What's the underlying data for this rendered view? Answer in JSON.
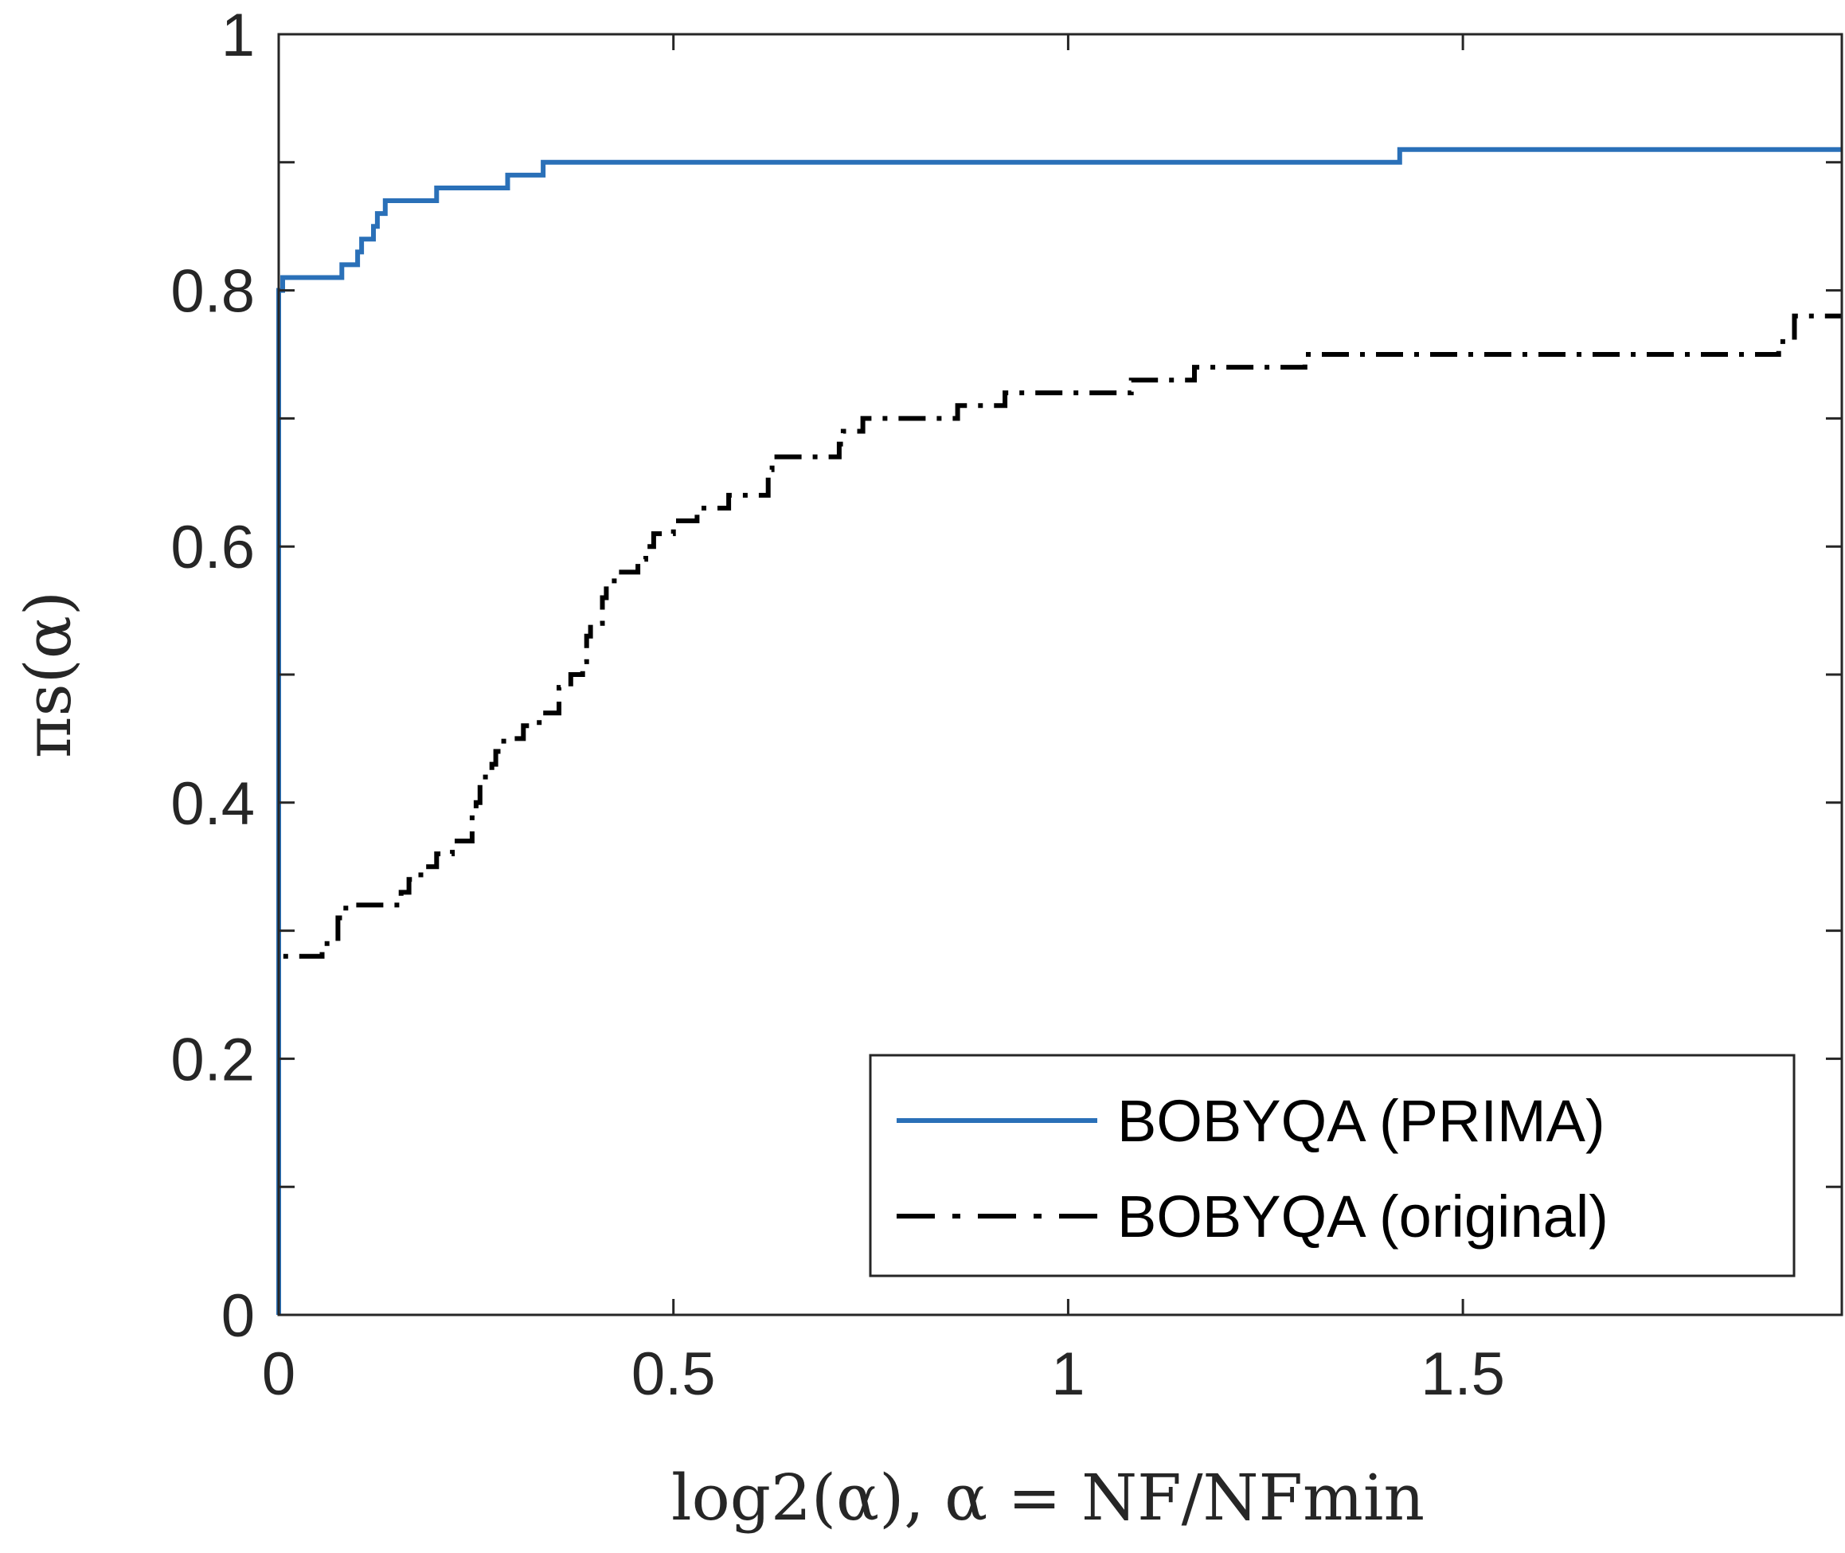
{
  "chart_data": {
    "type": "line",
    "title": "",
    "xlabel": "log2(α),    α = NF/NFmin",
    "ylabel": "πs(α)",
    "xlim": [
      0,
      1.98
    ],
    "ylim": [
      0,
      1
    ],
    "grid": false,
    "legend_position": "bottom-right",
    "x_ticks": [
      {
        "value": 0,
        "label": "0"
      },
      {
        "value": 0.5,
        "label": "0.5"
      },
      {
        "value": 1,
        "label": "1"
      },
      {
        "value": 1.5,
        "label": "1.5"
      }
    ],
    "y_ticks": [
      {
        "value": 0,
        "label": "0"
      },
      {
        "value": 0.2,
        "label": "0.2"
      },
      {
        "value": 0.4,
        "label": "0.4"
      },
      {
        "value": 0.6,
        "label": "0.6"
      },
      {
        "value": 0.8,
        "label": "0.8"
      },
      {
        "value": 1,
        "label": "1"
      }
    ],
    "minor_y_ticks": [
      0.1,
      0.3,
      0.5,
      0.7,
      0.9
    ],
    "series": [
      {
        "name": "BOBYQA (PRIMA)",
        "color": "#2a70b8",
        "style": "solid",
        "points": [
          [
            0,
            0
          ],
          [
            0,
            0.8
          ],
          [
            0.005,
            0.8
          ],
          [
            0.005,
            0.81
          ],
          [
            0.08,
            0.81
          ],
          [
            0.08,
            0.82
          ],
          [
            0.1,
            0.82
          ],
          [
            0.1,
            0.83
          ],
          [
            0.105,
            0.83
          ],
          [
            0.105,
            0.84
          ],
          [
            0.12,
            0.84
          ],
          [
            0.12,
            0.85
          ],
          [
            0.125,
            0.85
          ],
          [
            0.125,
            0.86
          ],
          [
            0.135,
            0.86
          ],
          [
            0.135,
            0.87
          ],
          [
            0.2,
            0.87
          ],
          [
            0.2,
            0.88
          ],
          [
            0.29,
            0.88
          ],
          [
            0.29,
            0.89
          ],
          [
            0.335,
            0.89
          ],
          [
            0.335,
            0.9
          ],
          [
            1.42,
            0.9
          ],
          [
            1.42,
            0.91
          ],
          [
            1.98,
            0.91
          ]
        ]
      },
      {
        "name": "BOBYQA (original)",
        "color": "#000000",
        "style": "dash-dot",
        "points": [
          [
            0,
            0
          ],
          [
            0,
            0.28
          ],
          [
            0.055,
            0.28
          ],
          [
            0.055,
            0.29
          ],
          [
            0.075,
            0.29
          ],
          [
            0.075,
            0.31
          ],
          [
            0.085,
            0.31
          ],
          [
            0.085,
            0.32
          ],
          [
            0.155,
            0.32
          ],
          [
            0.155,
            0.33
          ],
          [
            0.165,
            0.33
          ],
          [
            0.165,
            0.34
          ],
          [
            0.18,
            0.34
          ],
          [
            0.18,
            0.35
          ],
          [
            0.2,
            0.35
          ],
          [
            0.2,
            0.36
          ],
          [
            0.22,
            0.36
          ],
          [
            0.22,
            0.37
          ],
          [
            0.245,
            0.37
          ],
          [
            0.245,
            0.39
          ],
          [
            0.25,
            0.39
          ],
          [
            0.25,
            0.4
          ],
          [
            0.255,
            0.4
          ],
          [
            0.255,
            0.42
          ],
          [
            0.27,
            0.42
          ],
          [
            0.27,
            0.43
          ],
          [
            0.275,
            0.43
          ],
          [
            0.275,
            0.44
          ],
          [
            0.285,
            0.44
          ],
          [
            0.285,
            0.45
          ],
          [
            0.31,
            0.45
          ],
          [
            0.31,
            0.46
          ],
          [
            0.33,
            0.46
          ],
          [
            0.33,
            0.47
          ],
          [
            0.355,
            0.47
          ],
          [
            0.355,
            0.49
          ],
          [
            0.37,
            0.49
          ],
          [
            0.37,
            0.5
          ],
          [
            0.385,
            0.5
          ],
          [
            0.385,
            0.51
          ],
          [
            0.39,
            0.51
          ],
          [
            0.39,
            0.53
          ],
          [
            0.395,
            0.53
          ],
          [
            0.395,
            0.54
          ],
          [
            0.41,
            0.54
          ],
          [
            0.41,
            0.56
          ],
          [
            0.415,
            0.56
          ],
          [
            0.415,
            0.57
          ],
          [
            0.425,
            0.57
          ],
          [
            0.425,
            0.58
          ],
          [
            0.455,
            0.58
          ],
          [
            0.455,
            0.59
          ],
          [
            0.465,
            0.59
          ],
          [
            0.465,
            0.6
          ],
          [
            0.475,
            0.6
          ],
          [
            0.475,
            0.61
          ],
          [
            0.5,
            0.61
          ],
          [
            0.5,
            0.62
          ],
          [
            0.53,
            0.62
          ],
          [
            0.53,
            0.63
          ],
          [
            0.57,
            0.63
          ],
          [
            0.57,
            0.64
          ],
          [
            0.62,
            0.64
          ],
          [
            0.62,
            0.66
          ],
          [
            0.625,
            0.66
          ],
          [
            0.625,
            0.67
          ],
          [
            0.71,
            0.67
          ],
          [
            0.71,
            0.68
          ],
          [
            0.715,
            0.68
          ],
          [
            0.715,
            0.69
          ],
          [
            0.74,
            0.69
          ],
          [
            0.74,
            0.7
          ],
          [
            0.86,
            0.7
          ],
          [
            0.86,
            0.71
          ],
          [
            0.92,
            0.71
          ],
          [
            0.92,
            0.72
          ],
          [
            1.08,
            0.72
          ],
          [
            1.08,
            0.73
          ],
          [
            1.16,
            0.73
          ],
          [
            1.16,
            0.74
          ],
          [
            1.3,
            0.74
          ],
          [
            1.3,
            0.75
          ],
          [
            1.9,
            0.75
          ],
          [
            1.9,
            0.76
          ],
          [
            1.92,
            0.76
          ],
          [
            1.92,
            0.78
          ],
          [
            1.98,
            0.78
          ]
        ]
      }
    ]
  }
}
